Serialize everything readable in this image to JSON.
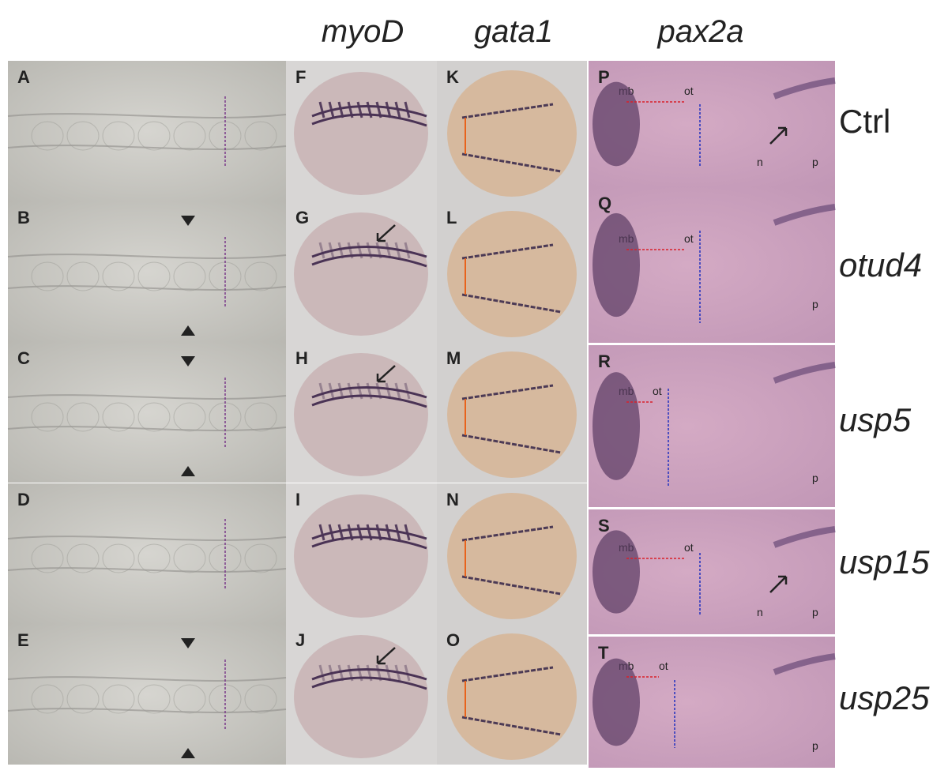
{
  "column_headers": [
    "myoD",
    "gata1",
    "pax2a"
  ],
  "rows": [
    {
      "label": "Ctrl",
      "panels": [
        "A",
        "F",
        "K",
        "P"
      ],
      "annotations": [
        "mb",
        "ot",
        "n",
        "p"
      ]
    },
    {
      "label": "otud4",
      "panels": [
        "B",
        "G",
        "L",
        "Q"
      ],
      "annotations": [
        "mb",
        "ot",
        "p"
      ]
    },
    {
      "label": "usp5",
      "panels": [
        "C",
        "H",
        "M",
        "R"
      ],
      "annotations": [
        "mb",
        "ot",
        "p"
      ]
    },
    {
      "label": "usp15",
      "panels": [
        "D",
        "I",
        "N",
        "S"
      ],
      "annotations": [
        "mb",
        "ot",
        "n",
        "p"
      ]
    },
    {
      "label": "usp25",
      "panels": [
        "E",
        "J",
        "O",
        "T"
      ],
      "annotations": [
        "mb",
        "ot",
        "p"
      ]
    }
  ]
}
